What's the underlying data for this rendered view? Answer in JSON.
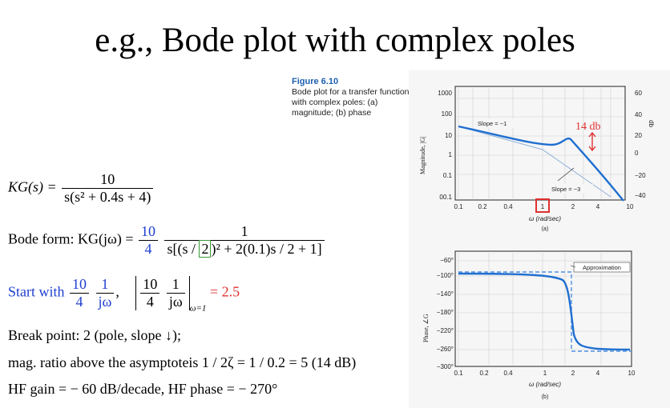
{
  "title": "e.g., Bode plot with complex poles",
  "caption": {
    "figure": "Figure 6.10",
    "text": "Bode plot for a transfer function with complex poles: (a) magnitude; (b) phase"
  },
  "equations": {
    "kg_lhs": "KG(s) =",
    "kg_num": "10",
    "kg_den": "s(s² + 0.4s + 4)",
    "bode_lhs": "Bode form: KG(jω) =",
    "bode_frac_num": "10",
    "bode_frac_den": "4",
    "bode_num": "1",
    "bode_den_pre": "s[(s / ",
    "bode_den_box": "2",
    "bode_den_post": ")² + 2(0.1)s / 2 + 1]",
    "start_label": "Start with",
    "start_f1_num": "10",
    "start_f1_den": "4",
    "start_f2_num": "1",
    "start_f2_den": "jω",
    "start_f3_num": "10",
    "start_f3_den": "4",
    "start_f4_num": "1",
    "start_f4_den": "jω",
    "start_sub": "ω=1",
    "start_result": "= 2.5"
  },
  "notes": {
    "break_point": "Break point:  2 (pole, slope ↓);",
    "mag_ratio": "mag. ratio above the asymptoteis 1 / 2ζ = 1 / 0.2 = 5 (14 dB)",
    "hf": "HF gain = − 60 dB/decade, HF phase = − 270°"
  },
  "plot_a": {
    "ylabel": "Magnitude, |G|",
    "ylabel_right": "db",
    "yticks_left": [
      "1000",
      "100",
      "10",
      "1",
      "0.1",
      "00.1"
    ],
    "yticks_right": [
      "60",
      "40",
      "20",
      "0",
      "−20",
      "−40"
    ],
    "xticks": [
      "0.1",
      "0.2",
      "0.4",
      "1",
      "2",
      "4",
      "10"
    ],
    "xlabel": "ω (rad/sec)",
    "sub": "(a)",
    "slope1": "Slope = −1",
    "slope3": "Slope = −3",
    "annotation": "14 db",
    "colors": {
      "curve": "#1f6fd0",
      "annotation": "#e03030",
      "asymptote": "#8fb0d8"
    }
  },
  "plot_b": {
    "ylabel": "Phase, ∠G",
    "yticks": [
      "−60°",
      "−100°",
      "−140°",
      "−180°",
      "−220°",
      "−260°",
      "−300°"
    ],
    "xticks": [
      "0.1",
      "0.2",
      "0.4",
      "1",
      "2",
      "4",
      "10"
    ],
    "xlabel": "ω (rad/sec)",
    "sub": "(b)",
    "legend": "Approximation",
    "colors": {
      "curve": "#1f6fd0",
      "approx": "#4f8fe0"
    }
  }
}
